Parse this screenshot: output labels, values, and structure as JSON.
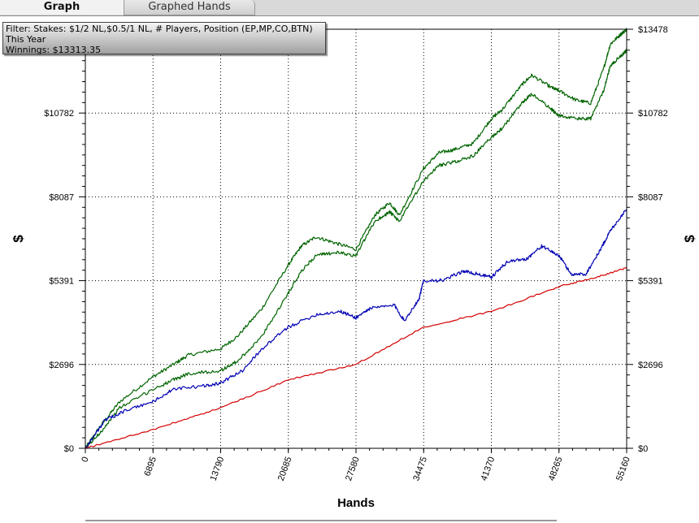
{
  "tabs": [
    {
      "label": "Graph",
      "active": true
    },
    {
      "label": "Graphed Hands",
      "active": false
    }
  ],
  "filter": {
    "line1": "Filter: Stakes: $1/2 NL,$0.5/1 NL, # Players, Position (EP,MP,CO,BTN)",
    "line2": "This Year",
    "line3": "Winnings: $13313.35"
  },
  "chart_data": {
    "type": "line",
    "xlabel": "Hands",
    "ylabel": "$",
    "xlim": [
      0,
      55160
    ],
    "ylim": [
      0,
      13478
    ],
    "x_ticks": [
      "0",
      "6895",
      "13790",
      "20685",
      "27580",
      "34475",
      "41370",
      "48265",
      "55160"
    ],
    "y_ticks": [
      "$0",
      "$2696",
      "$5391",
      "$8087",
      "$10782",
      "$13478"
    ],
    "grid": true,
    "series": [
      {
        "color": "#006400",
        "x": [
          0,
          1500,
          3500,
          6895,
          9000,
          10500,
          13790,
          15500,
          18000,
          20685,
          22000,
          23500,
          25500,
          27580,
          29500,
          31000,
          32000,
          34475,
          36000,
          37500,
          39500,
          41370,
          42500,
          44500,
          45500,
          47500,
          48265,
          50000,
          51500,
          52800,
          53500,
          54500,
          55160
        ],
        "y": [
          0,
          700,
          1500,
          2300,
          2700,
          3000,
          3200,
          3600,
          4500,
          5900,
          6500,
          6800,
          6600,
          6400,
          7500,
          7900,
          7500,
          9000,
          9500,
          9600,
          9800,
          10600,
          10900,
          11700,
          12000,
          11600,
          11500,
          11200,
          11100,
          12200,
          13000,
          13300,
          13478
        ]
      },
      {
        "color": "#006400",
        "x": [
          0,
          1500,
          3500,
          6895,
          9000,
          10500,
          13790,
          15500,
          18000,
          20685,
          22000,
          23500,
          25500,
          27580,
          29500,
          31000,
          32000,
          34475,
          36000,
          37500,
          39500,
          41370,
          42500,
          44500,
          45500,
          47500,
          48265,
          50000,
          51500,
          52800,
          53500,
          54500,
          55160
        ],
        "y": [
          0,
          500,
          1300,
          1900,
          2200,
          2400,
          2500,
          2800,
          3600,
          5000,
          5700,
          6200,
          6300,
          6200,
          7300,
          7600,
          7300,
          8600,
          9100,
          9200,
          9400,
          10000,
          10300,
          11100,
          11400,
          10900,
          10700,
          10600,
          10600,
          11500,
          12300,
          12600,
          12800
        ]
      },
      {
        "color": "#0000b4",
        "x": [
          0,
          2000,
          4000,
          6895,
          9000,
          12000,
          13790,
          16000,
          18000,
          20685,
          23500,
          26000,
          27580,
          29000,
          31500,
          32500,
          34000,
          34475,
          36500,
          38500,
          40000,
          41370,
          43000,
          45000,
          46500,
          48265,
          49500,
          51000,
          52500,
          53500,
          55160
        ],
        "y": [
          0,
          900,
          1200,
          1500,
          1900,
          2000,
          2100,
          2500,
          3200,
          3900,
          4300,
          4400,
          4200,
          4500,
          4600,
          4100,
          4800,
          5400,
          5400,
          5700,
          5600,
          5500,
          6000,
          6100,
          6500,
          6200,
          5600,
          5600,
          6400,
          7000,
          7700
        ]
      },
      {
        "color": "#d40000",
        "x": [
          0,
          6895,
          13790,
          20685,
          27580,
          34475,
          41370,
          48265,
          52000,
          55160
        ],
        "y": [
          0,
          600,
          1300,
          2200,
          2700,
          3900,
          4400,
          5200,
          5500,
          5800
        ]
      }
    ]
  }
}
